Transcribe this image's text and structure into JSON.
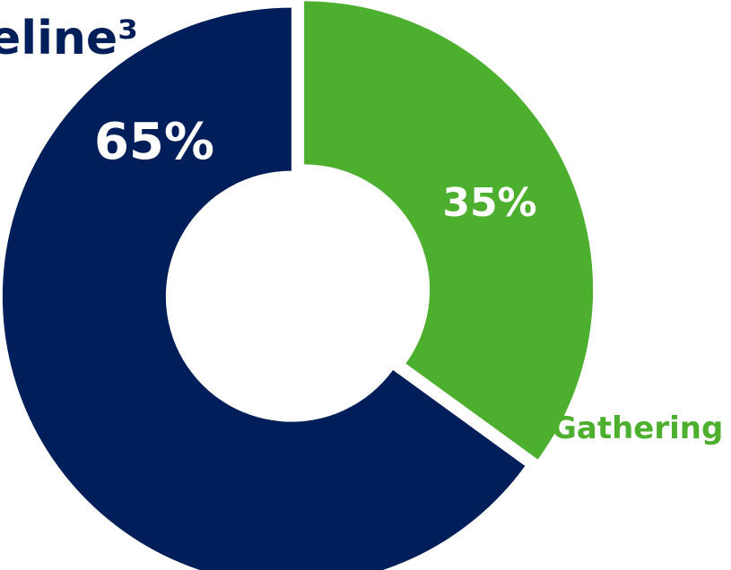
{
  "chart_data": {
    "type": "pie",
    "categories": [
      "eline³",
      "Gathering"
    ],
    "values": [
      65,
      35
    ],
    "value_labels": [
      "65%",
      "35%"
    ],
    "colors": [
      "#001e5a",
      "#4caf2e"
    ],
    "donut": true,
    "title": "",
    "legend": "category labels placed next to slices"
  }
}
